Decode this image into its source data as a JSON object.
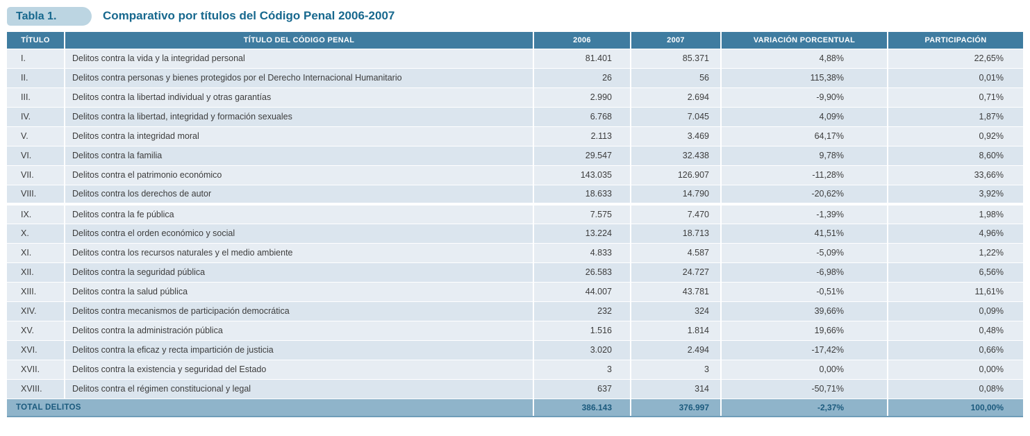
{
  "caption": {
    "badge": "Tabla 1.",
    "title": "Comparativo por títulos del Código Penal 2006-2007"
  },
  "table": {
    "columns": [
      "TÍTULO",
      "TÍTULO DEL CÓDIGO PENAL",
      "2006",
      "2007",
      "VARIACIÓN PORCENTUAL",
      "PARTICIPACIÓN"
    ],
    "rows": [
      {
        "titulo": "I.",
        "nombre": "Delitos contra la vida y la integridad personal",
        "y2006": "81.401",
        "y2007": "85.371",
        "variacion": "4,88%",
        "participacion": "22,65%"
      },
      {
        "titulo": "II.",
        "nombre": "Delitos contra personas y bienes protegidos por el Derecho Internacional Humanitario",
        "y2006": "26",
        "y2007": "56",
        "variacion": "115,38%",
        "participacion": "0,01%"
      },
      {
        "titulo": "III.",
        "nombre": "Delitos contra la libertad individual y otras garantías",
        "y2006": "2.990",
        "y2007": "2.694",
        "variacion": "-9,90%",
        "participacion": "0,71%"
      },
      {
        "titulo": "IV.",
        "nombre": "Delitos contra la libertad, integridad y formación sexuales",
        "y2006": "6.768",
        "y2007": "7.045",
        "variacion": "4,09%",
        "participacion": "1,87%"
      },
      {
        "titulo": "V.",
        "nombre": "Delitos contra la integridad moral",
        "y2006": "2.113",
        "y2007": "3.469",
        "variacion": "64,17%",
        "participacion": "0,92%"
      },
      {
        "titulo": "VI.",
        "nombre": "Delitos contra la familia",
        "y2006": "29.547",
        "y2007": "32.438",
        "variacion": "9,78%",
        "participacion": "8,60%"
      },
      {
        "titulo": "VII.",
        "nombre": "Delitos contra el patrimonio económico",
        "y2006": "143.035",
        "y2007": "126.907",
        "variacion": "-11,28%",
        "participacion": "33,66%"
      },
      {
        "titulo": "VIII.",
        "nombre": "Delitos contra los derechos de autor",
        "y2006": "18.633",
        "y2007": "14.790",
        "variacion": "-20,62%",
        "participacion": "3,92%"
      },
      {
        "titulo": "IX.",
        "nombre": "Delitos contra la fe pública",
        "y2006": "7.575",
        "y2007": "7.470",
        "variacion": "-1,39%",
        "participacion": "1,98%"
      },
      {
        "titulo": "X.",
        "nombre": "Delitos contra el orden económico y social",
        "y2006": "13.224",
        "y2007": "18.713",
        "variacion": "41,51%",
        "participacion": "4,96%"
      },
      {
        "titulo": "XI.",
        "nombre": "Delitos contra los recursos naturales y el medio ambiente",
        "y2006": "4.833",
        "y2007": "4.587",
        "variacion": "-5,09%",
        "participacion": "1,22%"
      },
      {
        "titulo": "XII.",
        "nombre": "Delitos contra la seguridad pública",
        "y2006": "26.583",
        "y2007": "24.727",
        "variacion": "-6,98%",
        "participacion": "6,56%"
      },
      {
        "titulo": "XIII.",
        "nombre": "Delitos contra la salud pública",
        "y2006": "44.007",
        "y2007": "43.781",
        "variacion": "-0,51%",
        "participacion": "11,61%"
      },
      {
        "titulo": "XIV.",
        "nombre": "Delitos contra mecanismos de participación democrática",
        "y2006": "232",
        "y2007": "324",
        "variacion": "39,66%",
        "participacion": "0,09%"
      },
      {
        "titulo": "XV.",
        "nombre": "Delitos contra la administración pública",
        "y2006": "1.516",
        "y2007": "1.814",
        "variacion": "19,66%",
        "participacion": "0,48%"
      },
      {
        "titulo": "XVI.",
        "nombre": "Delitos contra la eficaz y recta impartición de justicia",
        "y2006": "3.020",
        "y2007": "2.494",
        "variacion": "-17,42%",
        "participacion": "0,66%"
      },
      {
        "titulo": "XVII.",
        "nombre": "Delitos contra la existencia y seguridad del Estado",
        "y2006": "3",
        "y2007": "3",
        "variacion": "0,00%",
        "participacion": "0,00%"
      },
      {
        "titulo": "XVIII.",
        "nombre": "Delitos contra el régimen constitucional y legal",
        "y2006": "637",
        "y2007": "314",
        "variacion": "-50,71%",
        "participacion": "0,08%"
      }
    ],
    "total": {
      "label": "TOTAL DELITOS",
      "y2006": "386.143",
      "y2007": "376.997",
      "variacion": "-2,37%",
      "participacion": "100,00%"
    }
  },
  "colors": {
    "header_bg": "#3f7ca0",
    "row_odd": "#e7edf3",
    "row_even": "#dbe5ee",
    "total_bg": "#8fb4ca",
    "accent": "#17688e",
    "total_text": "#1b5a7d",
    "badge_bg": "#bcd5e2",
    "cell_text": "#3c3c3c"
  }
}
